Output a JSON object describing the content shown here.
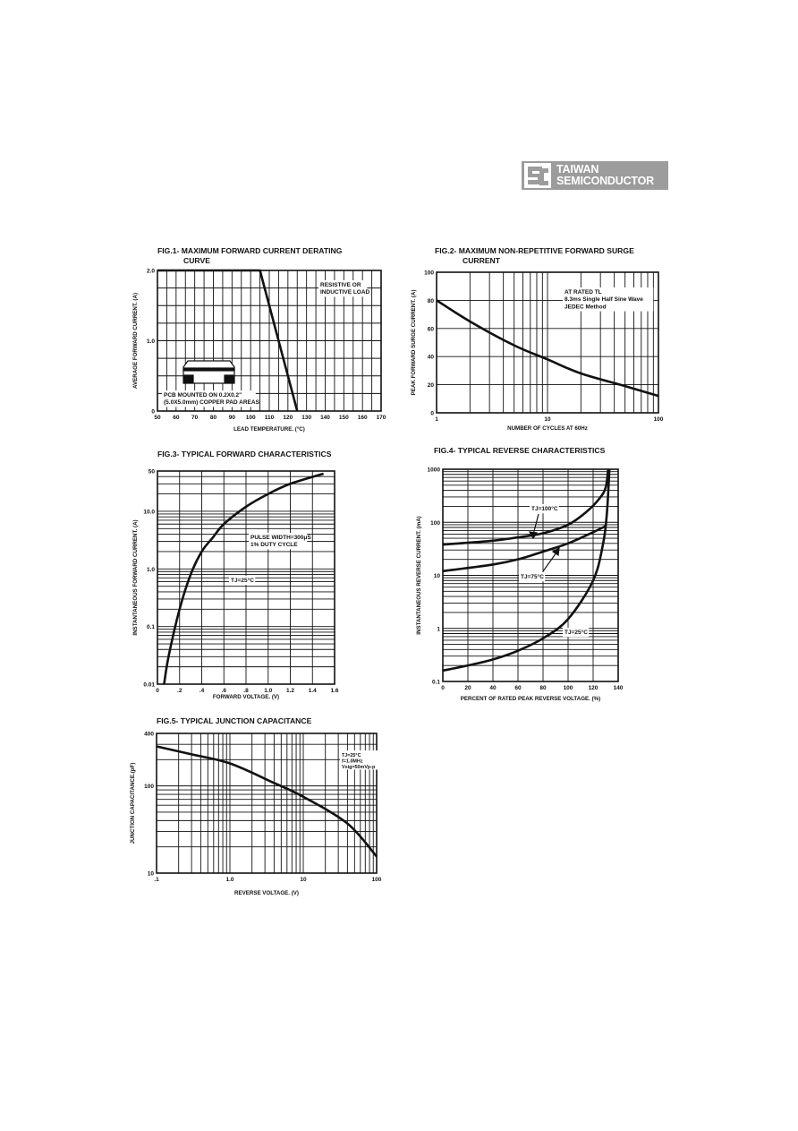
{
  "logo": {
    "line1": "TAIWAN",
    "line2": "SEMICONDUCTOR",
    "color": "#9c9c9c"
  },
  "chart_data": [
    {
      "type": "line",
      "title": [
        "FIG.1- MAXIMUM FORWARD CURRENT DERATING",
        "CURVE"
      ],
      "xlabel": "LEAD TEMPERATURE. (°C)",
      "ylabel": "AVERAGE FORWARD CURRENT. (A)",
      "xscale": "linear",
      "yscale": "linear",
      "xlim": [
        50,
        170
      ],
      "ylim": [
        0,
        2.0
      ],
      "xgrid_step": 5,
      "ygrid_step": 0.25,
      "xticks": [
        {
          "v": 50,
          "label": "50"
        },
        {
          "v": 60,
          "label": "60"
        },
        {
          "v": 70,
          "label": "70"
        },
        {
          "v": 80,
          "label": "80"
        },
        {
          "v": 90,
          "label": "90"
        },
        {
          "v": 100,
          "label": "100"
        },
        {
          "v": 110,
          "label": "110"
        },
        {
          "v": 120,
          "label": "120"
        },
        {
          "v": 130,
          "label": "130"
        },
        {
          "v": 140,
          "label": "140"
        },
        {
          "v": 150,
          "label": "150"
        },
        {
          "v": 160,
          "label": "160"
        },
        {
          "v": 170,
          "label": "170"
        }
      ],
      "yticks": [
        {
          "v": 0,
          "label": "0"
        },
        {
          "v": 1.0,
          "label": "1.0"
        },
        {
          "v": 2.0,
          "label": "2.0"
        }
      ],
      "grid": true,
      "series": [
        {
          "points": [
            [
              50,
              2.0
            ],
            [
              105,
              2.0
            ],
            [
              125,
              0
            ]
          ],
          "smooth": false
        }
      ],
      "annotations": [
        {
          "lines": [
            "RESISTIVE OR",
            "INDUCTIVE LOAD"
          ]
        },
        {
          "lines": [
            "PCB MOUNTED ON 0.2X0.2\"",
            "(5.0X5.0mm) COPPER PAD AREAS"
          ]
        }
      ]
    },
    {
      "type": "line",
      "title": [
        "FIG.2- MAXIMUM NON-REPETITIVE FORWARD SURGE",
        "CURRENT"
      ],
      "xlabel": "NUMBER OF CYCLES AT 60Hz",
      "ylabel": "PEAK FORWARD SURGE CURRENT. (A)",
      "xscale": "log",
      "yscale": "linear",
      "xlim": [
        1,
        100
      ],
      "ylim": [
        0,
        100
      ],
      "ygrid_step": 20,
      "xticks": [
        {
          "v": 1,
          "label": "1"
        },
        {
          "v": 10,
          "label": "10"
        },
        {
          "v": 100,
          "label": "100"
        }
      ],
      "yticks": [
        {
          "v": 0,
          "label": "0"
        },
        {
          "v": 20,
          "label": "20"
        },
        {
          "v": 40,
          "label": "40"
        },
        {
          "v": 60,
          "label": "60"
        },
        {
          "v": 80,
          "label": "80"
        },
        {
          "v": 100,
          "label": "100"
        }
      ],
      "grid": true,
      "series": [
        {
          "points": [
            [
              1,
              80
            ],
            [
              2,
              65
            ],
            [
              5,
              48
            ],
            [
              10,
              38
            ],
            [
              20,
              28
            ],
            [
              50,
              19
            ],
            [
              100,
              12
            ]
          ],
          "smooth": true
        }
      ],
      "annotations": [
        {
          "lines": [
            "AT RATED TL",
            "8.3ms Single Half Sine Wave",
            "JEDEC Method"
          ]
        }
      ]
    },
    {
      "type": "line",
      "title": [
        "FIG.3- TYPICAL FORWARD CHARACTERISTICS"
      ],
      "xlabel": "FORWARD VOLTAGE. (V)",
      "ylabel": "INSTANTANEOUS FORWARD CURRENT. (A)",
      "xscale": "linear",
      "yscale": "log",
      "xlim": [
        0,
        1.6
      ],
      "ylim": [
        0.01,
        50
      ],
      "xgrid_step": 0.2,
      "xticks": [
        {
          "v": 0,
          "label": "0"
        },
        {
          "v": 0.2,
          "label": ".2"
        },
        {
          "v": 0.4,
          "label": ".4"
        },
        {
          "v": 0.6,
          "label": ".6"
        },
        {
          "v": 0.8,
          "label": ".8"
        },
        {
          "v": 1.0,
          "label": "1.0"
        },
        {
          "v": 1.2,
          "label": "1.2"
        },
        {
          "v": 1.4,
          "label": "1.4"
        },
        {
          "v": 1.6,
          "label": "1.6"
        }
      ],
      "yticks": [
        {
          "v": 0.01,
          "label": "0.01"
        },
        {
          "v": 0.1,
          "label": "0.1"
        },
        {
          "v": 1,
          "label": "1.0"
        },
        {
          "v": 10,
          "label": "10.0"
        },
        {
          "v": 50,
          "label": "50"
        }
      ],
      "grid": true,
      "series": [
        {
          "points": [
            [
              0.06,
              0.01
            ],
            [
              0.1,
              0.03
            ],
            [
              0.2,
              0.2
            ],
            [
              0.3,
              0.8
            ],
            [
              0.4,
              2
            ],
            [
              0.5,
              3.5
            ],
            [
              0.6,
              6
            ],
            [
              0.8,
              12
            ],
            [
              1.0,
              20
            ],
            [
              1.2,
              30
            ],
            [
              1.5,
              45
            ]
          ],
          "smooth": true
        }
      ],
      "annotations": [
        {
          "lines": [
            "PULSE WIDTH=300μS",
            "1% DUTY CYCLE"
          ]
        },
        {
          "lines": [
            "TJ=25°C"
          ]
        }
      ]
    },
    {
      "type": "line",
      "title": [
        "FIG.4- TYPICAL REVERSE CHARACTERISTICS"
      ],
      "xlabel": "PERCENT OF RATED PEAK REVERSE VOLTAGE. (%)",
      "ylabel": "INSTANTANEOUS REVERSE CURRENT. (mA)",
      "xscale": "linear",
      "yscale": "log",
      "xlim": [
        0,
        140
      ],
      "ylim": [
        0.1,
        1000
      ],
      "xgrid_step": 20,
      "xticks": [
        {
          "v": 0,
          "label": "0"
        },
        {
          "v": 20,
          "label": "20"
        },
        {
          "v": 40,
          "label": "40"
        },
        {
          "v": 60,
          "label": "60"
        },
        {
          "v": 80,
          "label": "80"
        },
        {
          "v": 100,
          "label": "100"
        },
        {
          "v": 120,
          "label": "120"
        },
        {
          "v": 140,
          "label": "140"
        }
      ],
      "yticks": [
        {
          "v": 0.1,
          "label": "0.1"
        },
        {
          "v": 1,
          "label": "1"
        },
        {
          "v": 10,
          "label": "10"
        },
        {
          "v": 100,
          "label": "100"
        },
        {
          "v": 1000,
          "label": "1000"
        }
      ],
      "grid": true,
      "series": [
        {
          "name": "TJ=100°C",
          "points": [
            [
              0,
              38
            ],
            [
              40,
              45
            ],
            [
              60,
              52
            ],
            [
              80,
              62
            ],
            [
              100,
              90
            ],
            [
              115,
              160
            ],
            [
              125,
              280
            ],
            [
              130,
              450
            ],
            [
              132,
              1000
            ]
          ],
          "smooth": true
        },
        {
          "name": "TJ=75°C",
          "points": [
            [
              0,
              12
            ],
            [
              40,
              16
            ],
            [
              60,
              20
            ],
            [
              80,
              28
            ],
            [
              100,
              40
            ],
            [
              120,
              65
            ],
            [
              130,
              85
            ]
          ],
          "smooth": true
        },
        {
          "name": "TJ=25°C",
          "points": [
            [
              0,
              0.16
            ],
            [
              20,
              0.2
            ],
            [
              40,
              0.26
            ],
            [
              60,
              0.38
            ],
            [
              80,
              0.65
            ],
            [
              100,
              1.5
            ],
            [
              120,
              8
            ],
            [
              128,
              40
            ],
            [
              131,
              150
            ],
            [
              133,
              1000
            ]
          ],
          "smooth": true
        }
      ],
      "annotations": [
        {
          "lines": [
            "TJ=100°C"
          ]
        },
        {
          "lines": [
            "TJ=75°C"
          ]
        },
        {
          "lines": [
            "TJ=25°C"
          ]
        }
      ]
    },
    {
      "type": "line",
      "title": [
        "FIG.5- TYPICAL JUNCTION CAPACITANCE"
      ],
      "xlabel": "REVERSE VOLTAGE. (V)",
      "ylabel": "JUNCTION CAPACITANCE.(pF)",
      "xscale": "log",
      "yscale": "log",
      "xlim": [
        0.1,
        100
      ],
      "ylim": [
        10,
        400
      ],
      "xticks": [
        {
          "v": 0.1,
          "label": ".1"
        },
        {
          "v": 1,
          "label": "1.0"
        },
        {
          "v": 10,
          "label": "10"
        },
        {
          "v": 100,
          "label": "100"
        }
      ],
      "yticks": [
        {
          "v": 10,
          "label": "10"
        },
        {
          "v": 100,
          "label": "100"
        },
        {
          "v": 400,
          "label": "400"
        }
      ],
      "grid": true,
      "series": [
        {
          "points": [
            [
              0.1,
              284
            ],
            [
              0.3,
              230
            ],
            [
              1,
              181
            ],
            [
              4,
              108
            ],
            [
              10,
              75
            ],
            [
              40,
              37
            ],
            [
              100,
              15.5
            ]
          ],
          "smooth": true
        }
      ],
      "annotations": [
        {
          "lines": [
            "TJ=25°C",
            "f=1.0MHz",
            "Vsig=50mVp-p"
          ]
        }
      ]
    }
  ]
}
